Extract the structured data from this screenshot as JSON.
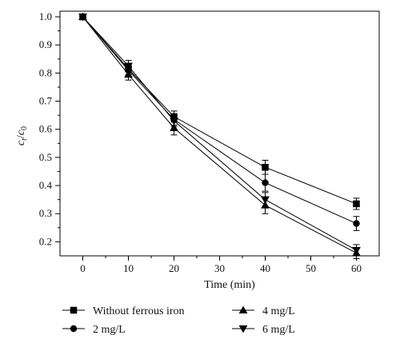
{
  "chart_data": {
    "type": "line",
    "xlabel": "Time (min)",
    "ylabel": "c_t / c_0",
    "ylabel_main": "c",
    "ylabel_sub_t": "t",
    "ylabel_slash": "/",
    "ylabel_sub_0": "0",
    "xlim": [
      -5,
      65
    ],
    "ylim": [
      0.15,
      1.02
    ],
    "x_ticks": [
      0,
      10,
      20,
      30,
      40,
      50,
      60
    ],
    "y_ticks": [
      0.2,
      0.3,
      0.4,
      0.5,
      0.6,
      0.7,
      0.8,
      0.9,
      1.0
    ],
    "x_tick_labels": [
      "0",
      "10",
      "20",
      "30",
      "40",
      "50",
      "60"
    ],
    "y_tick_labels": [
      "0.2",
      "0.3",
      "0.4",
      "0.5",
      "0.6",
      "0.7",
      "0.8",
      "0.9",
      "1.0"
    ],
    "x": [
      0,
      10,
      20,
      40,
      60
    ],
    "series": [
      {
        "name": "Without ferrous iron",
        "marker": "square",
        "values": [
          1.0,
          0.815,
          0.645,
          0.465,
          0.335
        ],
        "errors": [
          0.005,
          0.02,
          0.02,
          0.025,
          0.02
        ]
      },
      {
        "name": "2 mg/L",
        "marker": "circle",
        "values": [
          1.0,
          0.81,
          0.635,
          0.41,
          0.265
        ],
        "errors": [
          0.005,
          0.02,
          0.02,
          0.03,
          0.025
        ]
      },
      {
        "name": "4 mg/L",
        "marker": "triangle-up",
        "values": [
          1.0,
          0.795,
          0.605,
          0.33,
          0.16
        ],
        "errors": [
          0.005,
          0.02,
          0.025,
          0.03,
          0.02
        ]
      },
      {
        "name": "6 mg/L",
        "marker": "triangle-down",
        "values": [
          1.0,
          0.825,
          0.63,
          0.35,
          0.17
        ],
        "errors": [
          0.005,
          0.02,
          0.02,
          0.025,
          0.02
        ]
      }
    ],
    "grid": false,
    "legend_position": "below"
  }
}
